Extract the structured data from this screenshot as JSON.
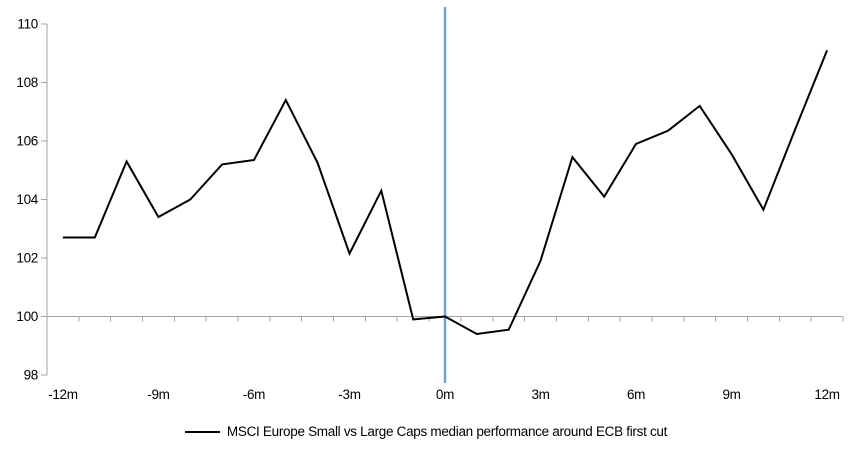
{
  "legend": {
    "label": "MSCI Europe Small vs Large Caps median performance around ECB first cut"
  },
  "colors": {
    "series": "#000000",
    "event_line": "#74A2CE",
    "axis": "#A3A3A3",
    "text": "#000000",
    "background": "#FFFFFF"
  },
  "chart_data": {
    "type": "line",
    "title": "",
    "xlabel": "",
    "ylabel": "",
    "x_unit": "months relative to ECB first cut",
    "x": [
      -12,
      -11,
      -10,
      -9,
      -8,
      -7,
      -6,
      -5,
      -4,
      -3,
      -2,
      -1,
      0,
      1,
      2,
      3,
      4,
      5,
      6,
      7,
      8,
      9,
      10,
      11,
      12
    ],
    "series": [
      {
        "name": "MSCI Europe Small vs Large Caps median performance around ECB first cut",
        "values": [
          102.7,
          102.7,
          105.3,
          103.4,
          104.0,
          105.2,
          105.35,
          107.4,
          105.25,
          102.15,
          104.3,
          99.9,
          100.0,
          99.4,
          99.55,
          101.9,
          105.45,
          104.1,
          105.9,
          106.35,
          107.2,
          105.55,
          103.65,
          106.4,
          109.1
        ]
      }
    ],
    "x_tick_labels": [
      "-12m",
      "-9m",
      "-6m",
      "-3m",
      "0m",
      "3m",
      "6m",
      "9m",
      "12m"
    ],
    "x_tick_positions": [
      -12,
      -9,
      -6,
      -3,
      0,
      3,
      6,
      9,
      12
    ],
    "y_ticks": [
      98,
      100,
      102,
      104,
      106,
      108,
      110
    ],
    "ylim": [
      98,
      110
    ],
    "xlim": [
      -12.5,
      12.5
    ],
    "baseline_gridline_y": 100,
    "event_line_x": 0,
    "grid": "horizontal-baseline-only",
    "legend_position": "bottom"
  }
}
